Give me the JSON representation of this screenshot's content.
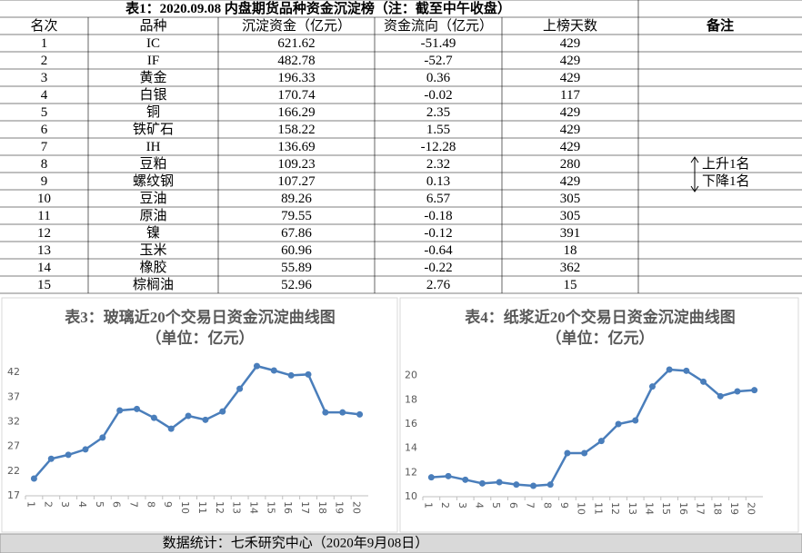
{
  "table": {
    "title": "表1：2020.09.08 内盘期货品种资金沉淀榜（注：截至中午收盘）",
    "header": [
      "名次",
      "品种",
      "沉淀资金（亿元）",
      "资金流向（亿元）",
      "上榜天数",
      "备注"
    ],
    "rows": [
      [
        1,
        "IC",
        621.62,
        -51.49,
        429
      ],
      [
        2,
        "IF",
        482.78,
        -52.7,
        429
      ],
      [
        3,
        "黄金",
        196.33,
        0.36,
        429
      ],
      [
        4,
        "白银",
        170.74,
        -0.02,
        117
      ],
      [
        5,
        "铜",
        166.29,
        2.35,
        429
      ],
      [
        6,
        "铁矿石",
        158.22,
        1.55,
        429
      ],
      [
        7,
        "IH",
        136.69,
        -12.28,
        429
      ],
      [
        8,
        "豆粕",
        109.23,
        2.32,
        280
      ],
      [
        9,
        "螺纹钢",
        107.27,
        0.13,
        429
      ],
      [
        10,
        "豆油",
        89.26,
        6.57,
        305
      ],
      [
        11,
        "原油",
        79.55,
        -0.18,
        305
      ],
      [
        12,
        "镍",
        67.86,
        -0.12,
        391
      ],
      [
        13,
        "玉米",
        60.96,
        -0.64,
        18
      ],
      [
        14,
        "橡胶",
        55.89,
        -0.22,
        362
      ],
      [
        15,
        "棕榈油",
        52.96,
        2.76,
        15
      ]
    ],
    "notes": [
      "上升1名",
      "下降1名"
    ]
  },
  "chart_data": [
    {
      "type": "line",
      "title": "表3：玻璃近20个交易日资金沉淀曲线图",
      "subtitle": "（单位：亿元）",
      "categories": [
        "1",
        "2",
        "3",
        "4",
        "5",
        "6",
        "7",
        "8",
        "9",
        "10",
        "11",
        "12",
        "13",
        "14",
        "15",
        "16",
        "17",
        "18",
        "19",
        "20"
      ],
      "values": [
        20.5,
        24.5,
        25.3,
        26.4,
        28.8,
        34.3,
        34.6,
        32.8,
        30.6,
        33.2,
        32.4,
        34.1,
        38.7,
        43.3,
        42.4,
        41.4,
        41.6,
        33.9,
        33.9,
        33.5
      ],
      "color": "#4a7ebb",
      "ylim": [
        17,
        47
      ],
      "yticks": [
        17,
        22,
        27,
        32,
        37,
        42
      ],
      "grid": false
    },
    {
      "type": "line",
      "title": "表4：纸浆近20个交易日资金沉淀曲线图",
      "subtitle": "（单位：亿元）",
      "categories": [
        "1",
        "2",
        "3",
        "4",
        "5",
        "6",
        "7",
        "8",
        "9",
        "10",
        "11",
        "12",
        "13",
        "14",
        "15",
        "16",
        "17",
        "18",
        "19",
        "20"
      ],
      "values": [
        11.6,
        11.7,
        11.4,
        11.1,
        11.2,
        11.0,
        10.9,
        11.0,
        13.6,
        13.6,
        14.6,
        16.0,
        16.3,
        19.1,
        20.5,
        20.4,
        19.5,
        18.3,
        18.7,
        18.8
      ],
      "color": "#4a7ebb",
      "ylim": [
        10,
        22
      ],
      "yticks": [
        10,
        12,
        14,
        16,
        18,
        20
      ],
      "grid": false
    }
  ],
  "footer": "数据统计：七禾研究中心（2020年9月08日）"
}
